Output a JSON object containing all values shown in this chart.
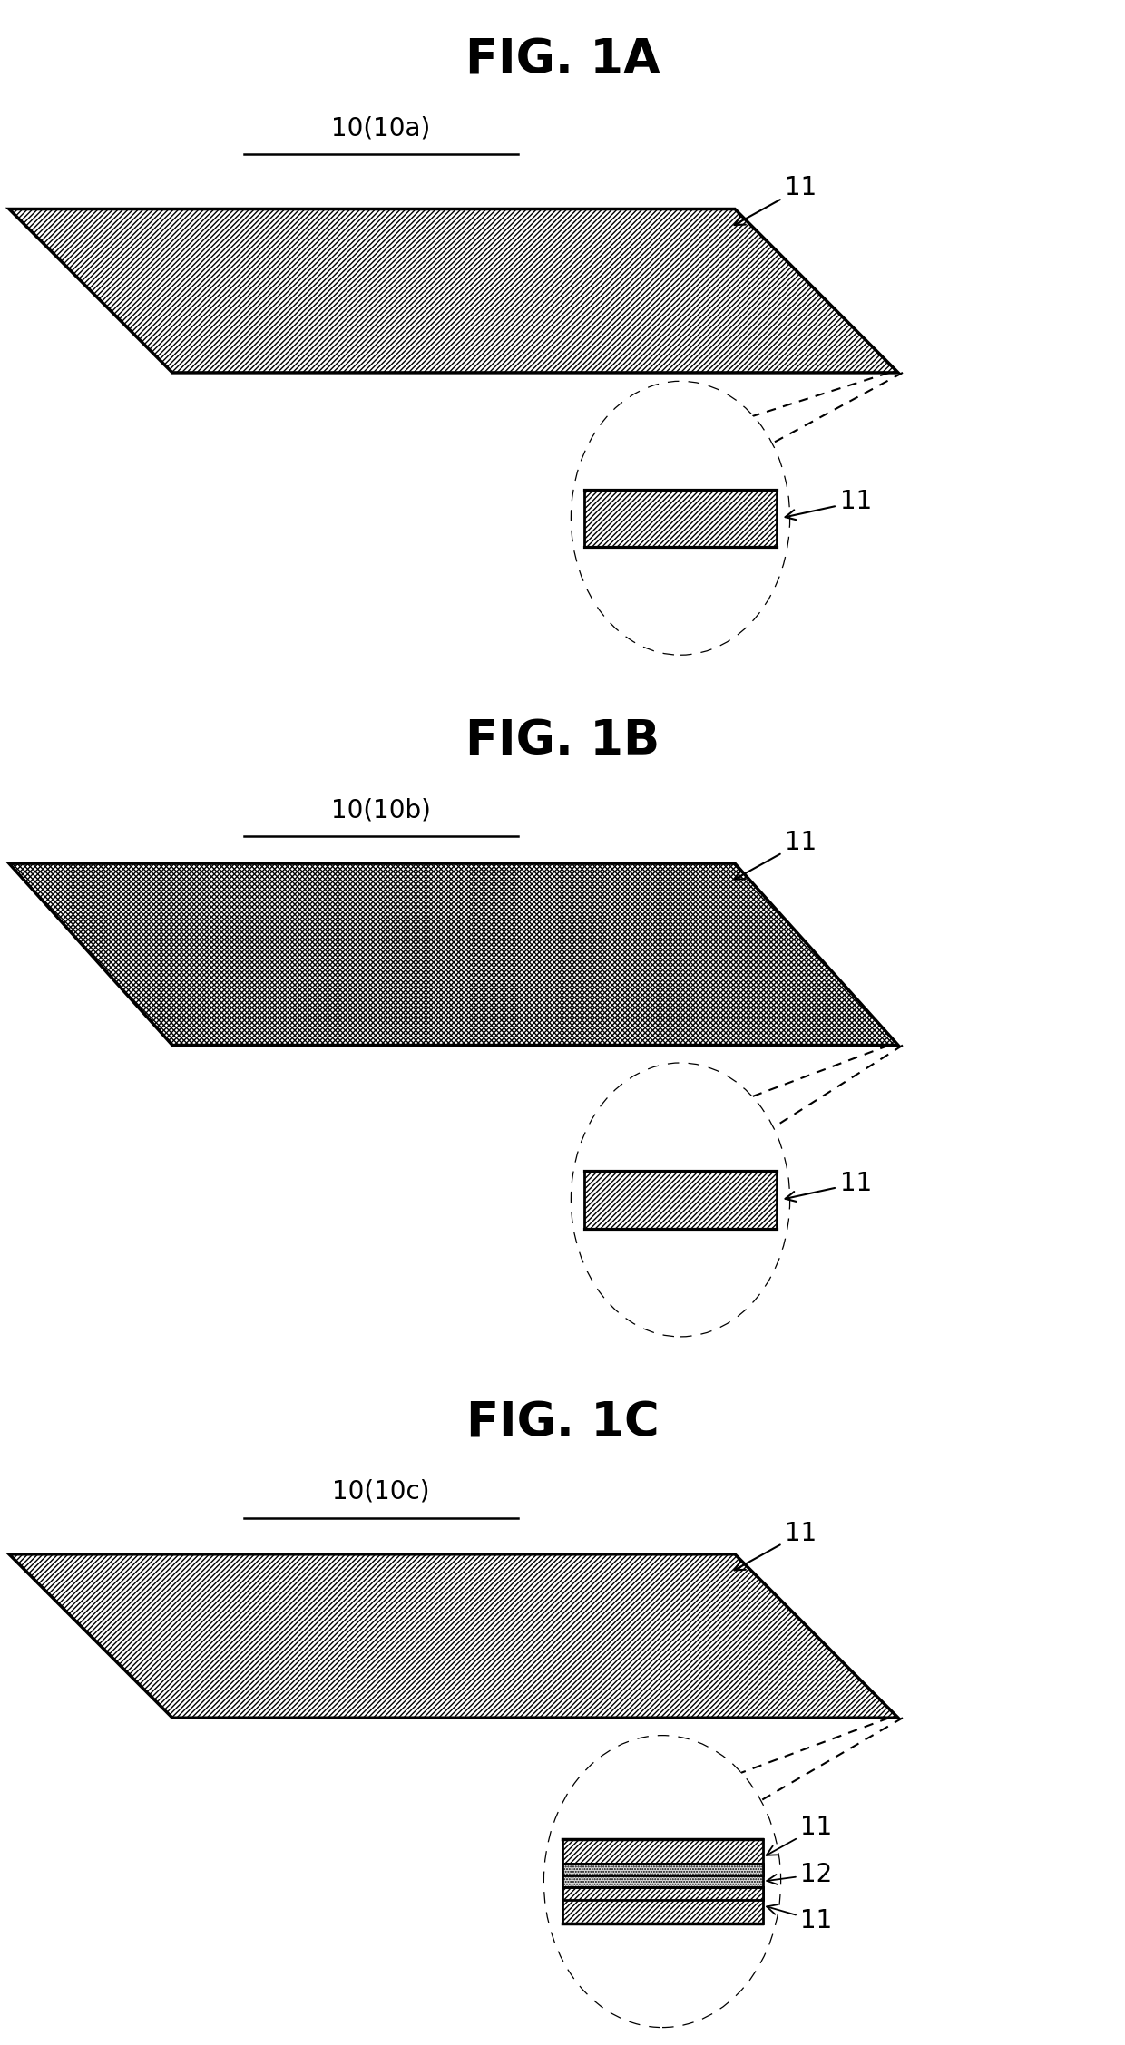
{
  "bg_color": "#ffffff",
  "title_fontsize": 38,
  "label_fontsize": 20,
  "tag_fontsize": 20,
  "panels": [
    {
      "title": "FIG. 1A",
      "sublabel": "10(10a)",
      "hatch": "single",
      "circle_layers": 1
    },
    {
      "title": "FIG. 1B",
      "sublabel": "10(10b)",
      "hatch": "mesh",
      "circle_layers": 1
    },
    {
      "title": "FIG. 1C",
      "sublabel": "10(10c)",
      "hatch": "single",
      "circle_layers": 3
    }
  ]
}
